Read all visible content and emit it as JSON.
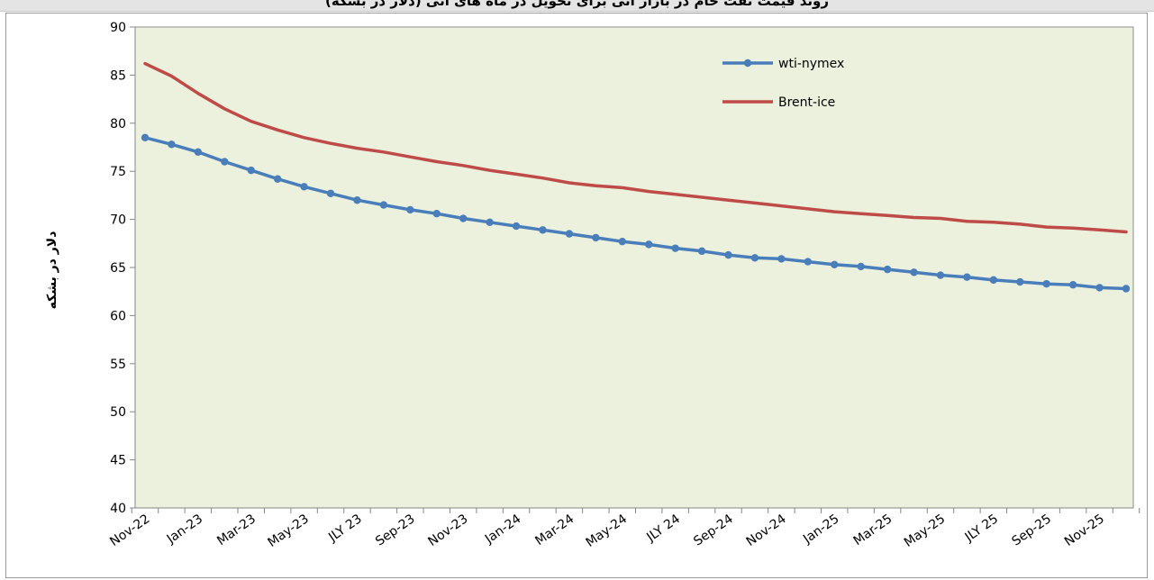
{
  "header": {
    "title": "روند قیمت نفت خام در بازار آتی برای تحویل در ماه های آتی (دلار در بشکه)"
  },
  "chart_data": {
    "type": "line",
    "title": "روند قیمت نفت خام در بازار آتی برای تحویل در ماه های آتی (دلار در بشکه)",
    "xlabel": "",
    "ylabel": "دلار در بشکه",
    "ylim": [
      40,
      90
    ],
    "yticks": [
      40,
      45,
      50,
      55,
      60,
      65,
      70,
      75,
      80,
      85,
      90
    ],
    "grid": false,
    "legend_position": "top-right",
    "plot_background": "#ebf1dd",
    "categories": [
      "Nov-22",
      "Dec-22",
      "Jan-23",
      "Feb-23",
      "Mar-23",
      "Apr-23",
      "May-23",
      "Jun-23",
      "JLY 23",
      "Aug-23",
      "Sep-23",
      "Oct-23",
      "Nov-23",
      "Dec-23",
      "Jan-24",
      "Feb-24",
      "Mar-24",
      "Apr-24",
      "May-24",
      "Jun-24",
      "JLY 24",
      "Aug-24",
      "Sep-24",
      "Oct-24",
      "Nov-24",
      "Dec-24",
      "Jan-25",
      "Feb-25",
      "Mar-25",
      "Apr-25",
      "May-25",
      "Jun-25",
      "JLY 25",
      "Aug-25",
      "Sep-25",
      "Oct-25",
      "Nov-25",
      "Dec-25"
    ],
    "tick_labels": [
      "Nov-22",
      "Jan-23",
      "Mar-23",
      "May-23",
      "JLY 23",
      "Sep-23",
      "Nov-23",
      "Jan-24",
      "Mar-24",
      "May-24",
      "JLY 24",
      "Sep-24",
      "Nov-24",
      "Jan-25",
      "Mar-25",
      "May-25",
      "JLY 25",
      "Sep-25",
      "Nov-25"
    ],
    "series": [
      {
        "name": "wti-nymex",
        "color": "#4a7ebb",
        "marker": "circle",
        "values": [
          78.5,
          77.8,
          77.0,
          76.0,
          75.1,
          74.2,
          73.4,
          72.7,
          72.0,
          71.5,
          71.0,
          70.6,
          70.1,
          69.7,
          69.3,
          68.9,
          68.5,
          68.1,
          67.7,
          67.4,
          67.0,
          66.7,
          66.3,
          66.0,
          65.9,
          65.6,
          65.3,
          65.1,
          64.8,
          64.5,
          64.2,
          64.0,
          63.7,
          63.5,
          63.3,
          63.2,
          62.9,
          62.8
        ]
      },
      {
        "name": "Brent-ice",
        "color": "#be4b48",
        "marker": "none",
        "values": [
          86.2,
          84.9,
          83.1,
          81.5,
          80.2,
          79.3,
          78.5,
          77.9,
          77.4,
          77.0,
          76.5,
          76.0,
          75.6,
          75.1,
          74.7,
          74.3,
          73.8,
          73.5,
          73.3,
          72.9,
          72.6,
          72.3,
          72.0,
          71.7,
          71.4,
          71.1,
          70.8,
          70.6,
          70.4,
          70.2,
          70.1,
          69.8,
          69.7,
          69.5,
          69.2,
          69.1,
          68.9,
          68.7
        ]
      }
    ]
  }
}
